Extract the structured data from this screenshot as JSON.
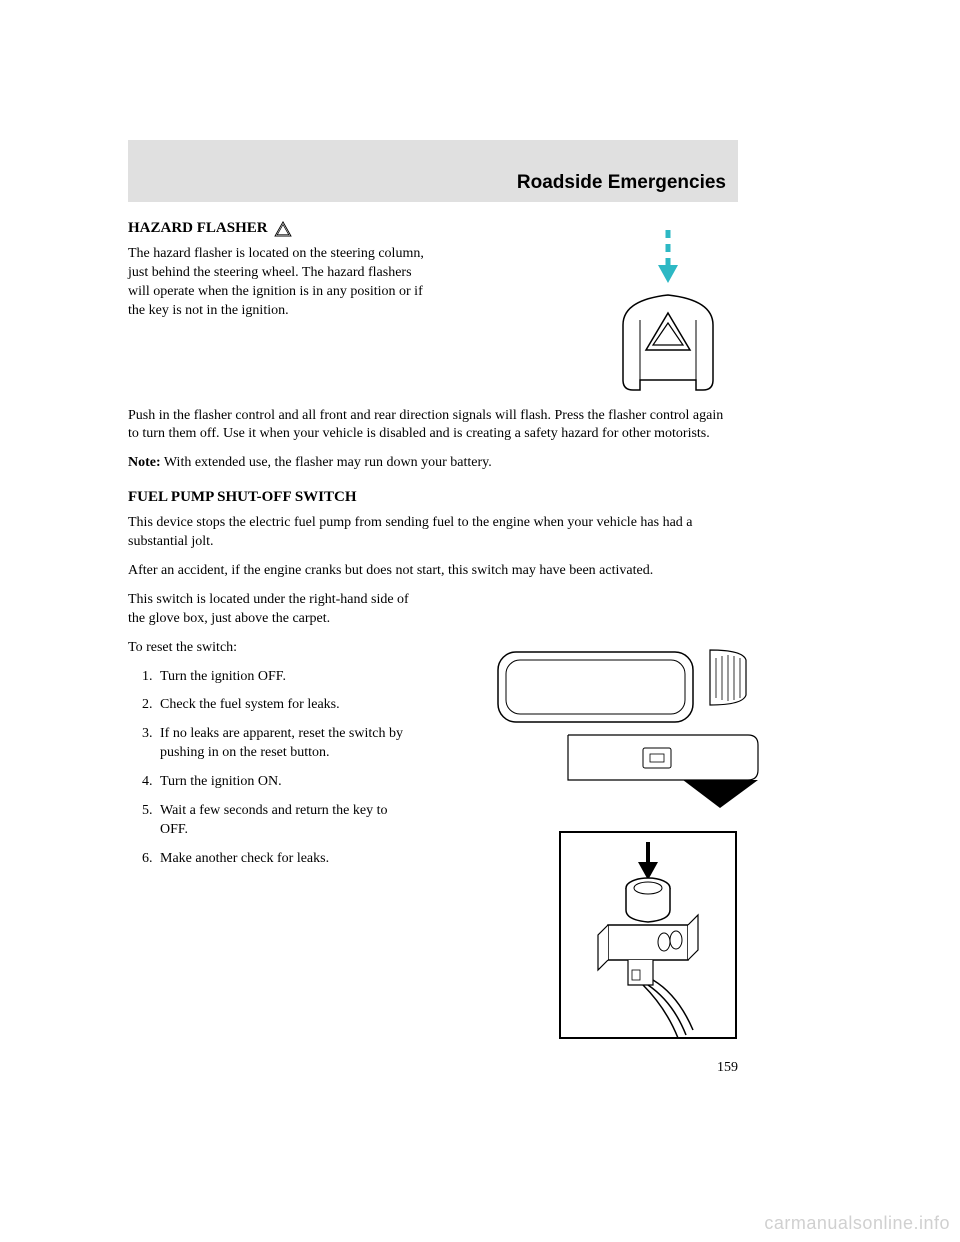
{
  "header": {
    "title": "Roadside Emergencies",
    "background_color": "#e0e0e0",
    "title_fontsize": 19,
    "title_weight": "bold"
  },
  "section1": {
    "heading": "HAZARD FLASHER",
    "para1": "The hazard flasher is located on the steering column, just behind the steering wheel. The hazard flashers will operate when the ignition is in any position or if the key is not in the ignition.",
    "para2": "Push in the flasher control and all front and rear direction signals will flash. Press the flasher control again to turn them off. Use it when your vehicle is disabled and is creating a safety hazard for other motorists.",
    "note_label": "Note:",
    "note_text": " With extended use, the flasher may run down your battery."
  },
  "section2": {
    "heading": "FUEL PUMP SHUT-OFF SWITCH",
    "para1": "This device stops the electric fuel pump from sending fuel to the engine when your vehicle has had a substantial jolt.",
    "para2": "After an accident, if the engine cranks but does not start, this switch may have been activated.",
    "para3": "This switch is located under the right-hand side of the glove box, just above the carpet.",
    "reset_intro": "To reset the switch:",
    "steps": [
      "Turn the ignition OFF.",
      "Check the fuel system for leaks.",
      "If no leaks are apparent, reset the switch by pushing in on the reset button.",
      "Turn the ignition ON.",
      "Wait a few seconds and return the key to OFF.",
      "Make another check for leaks."
    ]
  },
  "page_number": "159",
  "watermark": "carmanualsonline.info",
  "figures": {
    "hazard_button": {
      "arrow_color": "#2db8c4",
      "outline_color": "#000000",
      "triangle_stroke": "#000000"
    },
    "glovebox": {
      "outline_color": "#000000",
      "callout_fill": "#000000"
    },
    "switch": {
      "outline_color": "#000000",
      "arrow_fill": "#000000"
    }
  },
  "typography": {
    "body_fontsize": 14,
    "heading_fontsize": 15,
    "line_height": 1.35
  }
}
